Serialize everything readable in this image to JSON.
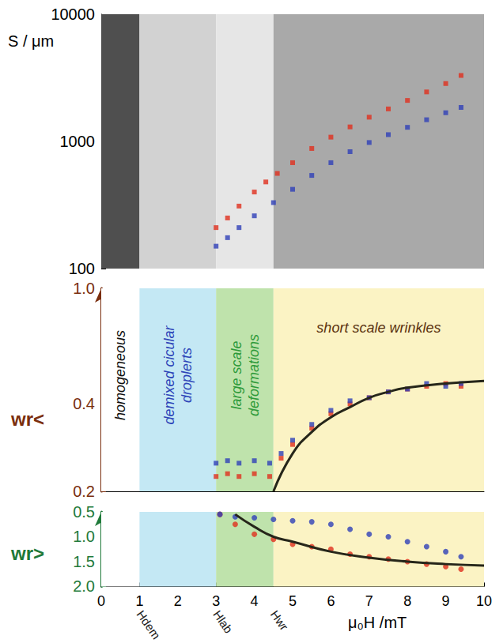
{
  "chart_data": {
    "type": "scatter",
    "grid": false,
    "xlabel": "μ₀H /mT",
    "xlim": [
      0,
      10
    ],
    "xticks": [
      0,
      1,
      2,
      3,
      4,
      5,
      6,
      7,
      8,
      9,
      10
    ],
    "field_marks": [
      {
        "value": 1,
        "label": "Hdem"
      },
      {
        "value": 3,
        "label": "Hlab"
      },
      {
        "value": 4.5,
        "label": "Hwr"
      }
    ],
    "regions": [
      {
        "label": "homogeneous",
        "x": [
          0,
          1
        ],
        "color": "#ffffff"
      },
      {
        "label": "demixed cicular droplerts",
        "x": [
          1,
          3
        ],
        "color": "#c4e8f4"
      },
      {
        "label": "large scale deformations",
        "x": [
          3,
          4.5
        ],
        "color": "#bfe3ac"
      },
      {
        "label": "short scale wrinkles",
        "x": [
          4.5,
          10
        ],
        "color": "#fbf3c4"
      }
    ],
    "panels": [
      {
        "ylabel": "S / μm",
        "log": "y",
        "ylim": [
          100,
          10000
        ],
        "yticks": [
          100,
          1000,
          10000
        ],
        "color": "#000000",
        "series": [
          {
            "color": "#e0301e",
            "marker": "square",
            "x": [
              3.0,
              3.3,
              3.6,
              4.0,
              4.3,
              4.6,
              5.0,
              5.5,
              6.0,
              6.5,
              7.0,
              7.5,
              8.0,
              8.5,
              9.0,
              9.4
            ],
            "values": [
              210,
              250,
              310,
              400,
              480,
              560,
              680,
              880,
              1080,
              1300,
              1550,
              1800,
              2100,
              2450,
              2850,
              3300
            ]
          },
          {
            "color": "#3040b8",
            "marker": "square",
            "x": [
              3.0,
              3.3,
              3.6,
              4.0,
              4.5,
              5.0,
              5.5,
              6.0,
              6.5,
              7.0,
              7.5,
              8.0,
              8.5,
              9.0,
              9.4
            ],
            "values": [
              150,
              175,
              210,
              260,
              330,
              420,
              540,
              680,
              830,
              980,
              1130,
              1290,
              1480,
              1680,
              1850
            ]
          }
        ]
      },
      {
        "ylabel": "wr<",
        "log": "y",
        "ylim": [
          0.2,
          1
        ],
        "yticks": [
          0.2,
          0.4,
          {
            "value": 1,
            "label": "1.0"
          }
        ],
        "color": "#7a2e0e",
        "series": [
          {
            "color": "#e0301e",
            "marker": "square",
            "x": [
              3.0,
              3.3,
              3.6,
              4.0,
              4.4,
              4.7,
              5.0,
              5.5,
              6.0,
              6.5,
              7.0,
              7.5,
              8.0,
              8.5,
              9.0,
              9.4
            ],
            "values": [
              0.225,
              0.23,
              0.225,
              0.23,
              0.225,
              0.26,
              0.29,
              0.33,
              0.37,
              0.4,
              0.42,
              0.44,
              0.45,
              0.46,
              0.47,
              0.46
            ]
          },
          {
            "color": "#3040b8",
            "marker": "square",
            "x": [
              3.0,
              3.3,
              3.6,
              4.0,
              4.4,
              4.7,
              5.0,
              5.5,
              6.0,
              6.5,
              7.0,
              7.5,
              8.0,
              8.5,
              9.0,
              9.4
            ],
            "values": [
              0.25,
              0.255,
              0.25,
              0.255,
              0.25,
              0.27,
              0.3,
              0.34,
              0.38,
              0.41,
              0.42,
              0.44,
              0.45,
              0.47,
              0.46,
              0.47
            ]
          },
          {
            "type": "line",
            "color": "#26261a",
            "line_style": "solid",
            "x": [
              4.5,
              5,
              5.5,
              6,
              6.5,
              7,
              7.5,
              8,
              9,
              10
            ],
            "values": [
              0.2,
              0.27,
              0.32,
              0.36,
              0.39,
              0.42,
              0.44,
              0.455,
              0.47,
              0.48
            ]
          }
        ]
      },
      {
        "ylabel": "wr>",
        "ylim": [
          2,
          0.5
        ],
        "yticks": [
          0.5,
          {
            "value": 1,
            "label": "1.0"
          },
          1.5,
          {
            "value": 2,
            "label": "2.0"
          }
        ],
        "color": "#1f7a3a",
        "series": [
          {
            "color": "#e0301e",
            "marker": "circle",
            "x": [
              3.1,
              3.5,
              4,
              4.5,
              5,
              5.5,
              6,
              6.5,
              7,
              7.5,
              8,
              8.5,
              9,
              9.4
            ],
            "values": [
              0.55,
              0.75,
              0.95,
              1.05,
              1.15,
              1.2,
              1.25,
              1.35,
              1.4,
              1.45,
              1.5,
              1.55,
              1.6,
              1.65
            ]
          },
          {
            "color": "#3040b8",
            "marker": "circle",
            "x": [
              3.1,
              3.5,
              4,
              4.5,
              5,
              5.5,
              6,
              6.5,
              7,
              7.5,
              8,
              8.5,
              9,
              9.4
            ],
            "values": [
              0.55,
              0.6,
              0.62,
              0.65,
              0.68,
              0.7,
              0.75,
              0.85,
              0.95,
              1.0,
              1.1,
              1.2,
              1.3,
              1.4
            ]
          },
          {
            "type": "line",
            "color": "#26261a",
            "line_style": "solid",
            "x": [
              3.5,
              4,
              4.5,
              5,
              6,
              7,
              8,
              9,
              10
            ],
            "values": [
              0.55,
              0.8,
              1.0,
              1.1,
              1.3,
              1.42,
              1.5,
              1.55,
              1.58
            ]
          }
        ]
      }
    ]
  }
}
